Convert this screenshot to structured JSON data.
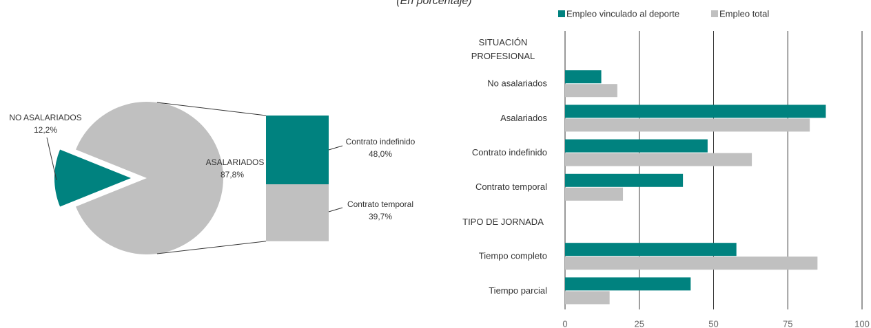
{
  "subtitle": "(En porcentaje)",
  "chart_data": [
    {
      "type": "pie",
      "categories": [
        "NO ASALARIADOS",
        "ASALARIADOS"
      ],
      "values": [
        12.2,
        87.8
      ],
      "value_labels": [
        "12,2%",
        "87,8%"
      ],
      "colors": [
        "#00827f",
        "#c0c0c0"
      ],
      "breakdown": {
        "categories": [
          "Contrato indefinido",
          "Contrato temporal"
        ],
        "values": [
          48.0,
          39.7
        ],
        "value_labels": [
          "48,0%",
          "39,7%"
        ],
        "colors": [
          "#00827f",
          "#c0c0c0"
        ]
      }
    },
    {
      "type": "hbar",
      "categories": [
        "SITUACIÓN PROFESIONAL",
        "No asalariados",
        "Asalariados",
        "Contrato indefinido",
        "Contrato temporal",
        "TIPO DE JORNADA",
        "Tiempo completo",
        "Tiempo parcial"
      ],
      "series": [
        {
          "name": "Empleo vinculado al deporte",
          "color": "#00827f",
          "values": [
            null,
            12.2,
            87.8,
            48.0,
            39.7,
            null,
            57.7,
            42.3
          ]
        },
        {
          "name": "Empleo total",
          "color": "#c0c0c0",
          "values": [
            null,
            17.6,
            82.4,
            62.9,
            19.5,
            null,
            85.0,
            15.0
          ]
        }
      ],
      "xlim": [
        0,
        100
      ],
      "xticks": [
        0,
        25,
        50,
        75,
        100
      ],
      "grid": true
    }
  ]
}
